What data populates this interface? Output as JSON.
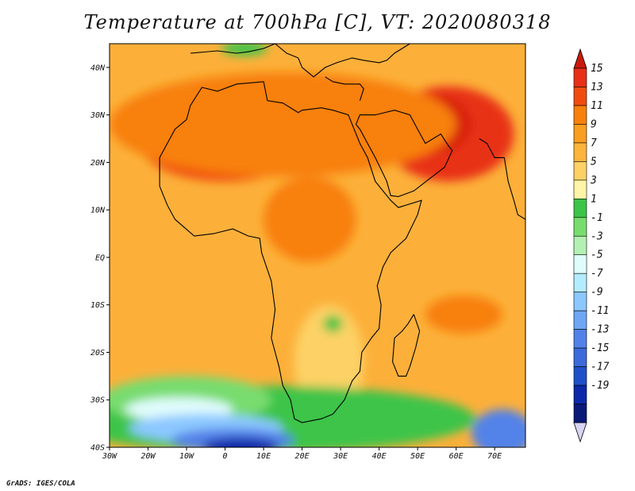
{
  "title": "Temperature at 700hPa [C], VT: 2020080318",
  "credit": "GrADS: IGES/COLA",
  "map": {
    "lon_range": [
      -30,
      78
    ],
    "lat_range": [
      -40,
      45
    ],
    "lon_ticks": [
      {
        "value": -30,
        "label": "30W"
      },
      {
        "value": -20,
        "label": "20W"
      },
      {
        "value": -10,
        "label": "10W"
      },
      {
        "value": 0,
        "label": "0"
      },
      {
        "value": 10,
        "label": "10E"
      },
      {
        "value": 20,
        "label": "20E"
      },
      {
        "value": 30,
        "label": "30E"
      },
      {
        "value": 40,
        "label": "40E"
      },
      {
        "value": 50,
        "label": "50E"
      },
      {
        "value": 60,
        "label": "60E"
      },
      {
        "value": 70,
        "label": "70E"
      }
    ],
    "lat_ticks": [
      {
        "value": 40,
        "label": "40N"
      },
      {
        "value": 30,
        "label": "30N"
      },
      {
        "value": 20,
        "label": "20N"
      },
      {
        "value": 10,
        "label": "10N"
      },
      {
        "value": 0,
        "label": "EQ"
      },
      {
        "value": -10,
        "label": "10S"
      },
      {
        "value": -20,
        "label": "20S"
      },
      {
        "value": -30,
        "label": "30S"
      },
      {
        "value": -40,
        "label": "40S"
      }
    ]
  },
  "colorbar": {
    "labels": [
      "15",
      "13",
      "11",
      "9",
      "7",
      "5",
      "3",
      "1",
      "-1",
      "-3",
      "-5",
      "-7",
      "-9",
      "-11",
      "-13",
      "-15",
      "-17",
      "-19"
    ],
    "colors": [
      "#e83018",
      "#f04c10",
      "#f8800c",
      "#fa9e20",
      "#fcb43c",
      "#fdd165",
      "#fff4a8",
      "#3cc448",
      "#78dc6e",
      "#b4f0b4",
      "#e0fcfc",
      "#b4ecff",
      "#8cc8ff",
      "#6ea6f2",
      "#5282e8",
      "#3c6ada",
      "#2050c8",
      "#0c28a8",
      "#0a1878"
    ],
    "top_color": "#c81a0c",
    "bottom_color": "#d8d4f4"
  },
  "fields": {
    "background": "#fcb03a",
    "regions": [
      {
        "name": "arabia-heat",
        "color": "#e83018",
        "cx": 58,
        "cy": 26,
        "rx": 17,
        "ry": 10
      },
      {
        "name": "arabia-core",
        "color": "#d8220c",
        "cx": 55,
        "cy": 28,
        "rx": 9,
        "ry": 6
      },
      {
        "name": "sahara-heat",
        "color": "#f04c10",
        "cx": 0,
        "cy": 24,
        "rx": 22,
        "ry": 8
      },
      {
        "name": "sahara-core",
        "color": "#e83018",
        "cx": -4,
        "cy": 23,
        "rx": 10,
        "ry": 5
      },
      {
        "name": "north-band",
        "color": "#f8800c",
        "cx": 15,
        "cy": 28,
        "rx": 45,
        "ry": 11
      },
      {
        "name": "central-africa",
        "color": "#f8800c",
        "cx": 22,
        "cy": 8,
        "rx": 12,
        "ry": 9
      },
      {
        "name": "south-plateau",
        "color": "#fdd165",
        "cx": 27,
        "cy": -22,
        "rx": 9,
        "ry": 12
      },
      {
        "name": "zambia-cool",
        "color": "#3cc448",
        "cx": 28,
        "cy": -14,
        "rx": 2.5,
        "ry": 1.8
      },
      {
        "name": "indian-ocean",
        "color": "#f8800c",
        "cx": 62,
        "cy": -12,
        "rx": 10,
        "ry": 4
      },
      {
        "name": "south-green",
        "color": "#3cc448",
        "cx": 10,
        "cy": -34,
        "rx": 55,
        "ry": 7
      },
      {
        "name": "south-light",
        "color": "#78dc6e",
        "cx": -10,
        "cy": -30,
        "rx": 22,
        "ry": 5
      },
      {
        "name": "south-cyan",
        "color": "#e0fcfc",
        "cx": -12,
        "cy": -32,
        "rx": 14,
        "ry": 2.5
      },
      {
        "name": "south-blue",
        "color": "#8cc8ff",
        "cx": -5,
        "cy": -36,
        "rx": 20,
        "ry": 3
      },
      {
        "name": "south-blue-2",
        "color": "#5282e8",
        "cx": 2,
        "cy": -38.5,
        "rx": 16,
        "ry": 2.5
      },
      {
        "name": "south-dark",
        "color": "#0c28a8",
        "cx": 4,
        "cy": -40,
        "rx": 10,
        "ry": 2
      },
      {
        "name": "se-blue",
        "color": "#5282e8",
        "cx": 72,
        "cy": -37,
        "rx": 8,
        "ry": 5
      },
      {
        "name": "med-green",
        "color": "#3cc448",
        "cx": 5,
        "cy": 44,
        "rx": 6,
        "ry": 1.5
      }
    ]
  }
}
